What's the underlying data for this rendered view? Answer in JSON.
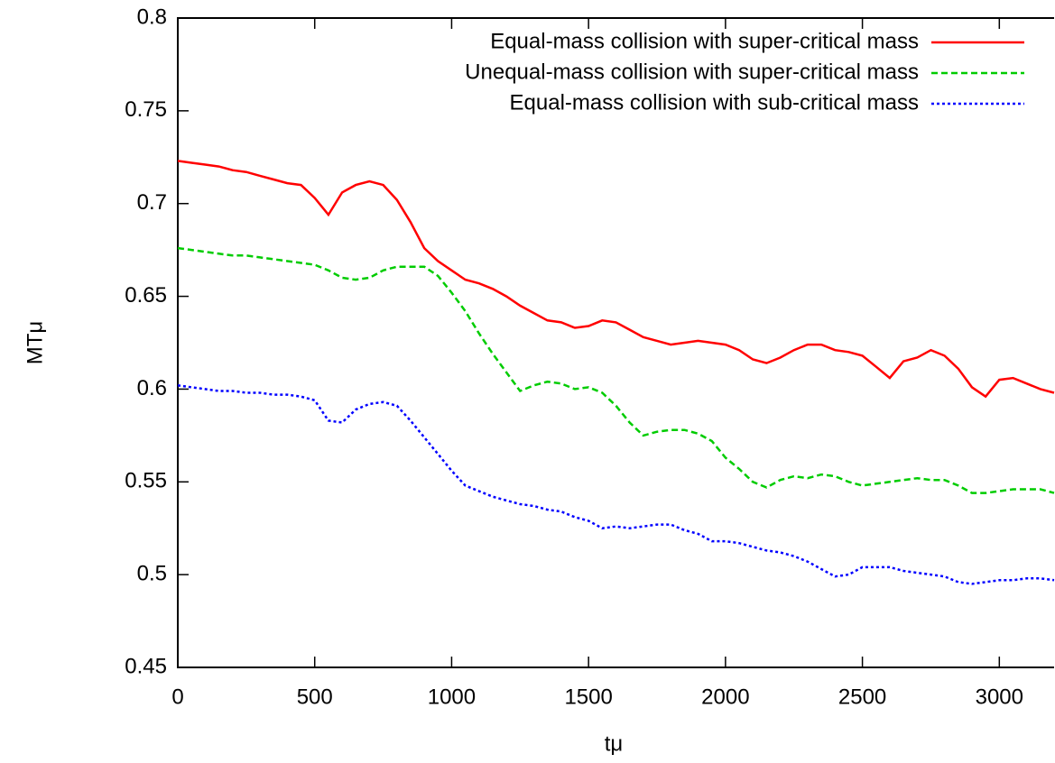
{
  "chart_data": {
    "type": "line",
    "xlabel": "tμ",
    "ylabel": "MTμ",
    "xlim": [
      0,
      3200
    ],
    "ylim": [
      0.45,
      0.8
    ],
    "xticks": [
      0,
      500,
      1000,
      1500,
      2000,
      2500,
      3000
    ],
    "yticks": [
      0.45,
      0.5,
      0.55,
      0.6,
      0.65,
      0.7,
      0.75,
      0.8
    ],
    "legend": "top-right",
    "x": [
      0,
      50,
      100,
      150,
      200,
      250,
      300,
      350,
      400,
      450,
      500,
      550,
      600,
      650,
      700,
      750,
      800,
      850,
      900,
      950,
      1000,
      1050,
      1100,
      1150,
      1200,
      1250,
      1300,
      1350,
      1400,
      1450,
      1500,
      1550,
      1600,
      1650,
      1700,
      1750,
      1800,
      1850,
      1900,
      1950,
      2000,
      2050,
      2100,
      2150,
      2200,
      2250,
      2300,
      2350,
      2400,
      2450,
      2500,
      2550,
      2600,
      2650,
      2700,
      2750,
      2800,
      2850,
      2900,
      2950,
      3000,
      3050,
      3100,
      3150,
      3200
    ],
    "series": [
      {
        "name": "Equal-mass collision with super-critical mass",
        "color": "#ff0000",
        "linestyle": "solid",
        "values": [
          0.723,
          0.722,
          0.721,
          0.72,
          0.718,
          0.717,
          0.715,
          0.713,
          0.711,
          0.71,
          0.703,
          0.694,
          0.706,
          0.71,
          0.712,
          0.71,
          0.702,
          0.69,
          0.676,
          0.669,
          0.664,
          0.659,
          0.657,
          0.654,
          0.65,
          0.645,
          0.641,
          0.637,
          0.636,
          0.633,
          0.634,
          0.637,
          0.636,
          0.632,
          0.628,
          0.626,
          0.624,
          0.625,
          0.626,
          0.625,
          0.624,
          0.621,
          0.616,
          0.614,
          0.617,
          0.621,
          0.624,
          0.624,
          0.621,
          0.62,
          0.618,
          0.612,
          0.606,
          0.615,
          0.617,
          0.621,
          0.618,
          0.611,
          0.601,
          0.596,
          0.605,
          0.606,
          0.603,
          0.6,
          0.598
        ]
      },
      {
        "name": "Unequal-mass collision with super-critical mass",
        "color": "#00cc00",
        "linestyle": "dashed",
        "values": [
          0.676,
          0.675,
          0.674,
          0.673,
          0.672,
          0.672,
          0.671,
          0.67,
          0.669,
          0.668,
          0.667,
          0.664,
          0.66,
          0.659,
          0.66,
          0.664,
          0.666,
          0.666,
          0.666,
          0.661,
          0.652,
          0.642,
          0.63,
          0.619,
          0.609,
          0.599,
          0.602,
          0.604,
          0.603,
          0.6,
          0.601,
          0.598,
          0.591,
          0.582,
          0.575,
          0.577,
          0.578,
          0.578,
          0.576,
          0.572,
          0.563,
          0.557,
          0.55,
          0.547,
          0.551,
          0.553,
          0.552,
          0.554,
          0.553,
          0.55,
          0.548,
          0.549,
          0.55,
          0.551,
          0.552,
          0.551,
          0.551,
          0.548,
          0.544,
          0.544,
          0.545,
          0.546,
          0.546,
          0.546,
          0.544
        ]
      },
      {
        "name": "Equal-mass collision with sub-critical mass",
        "color": "#0000ff",
        "linestyle": "dotted",
        "values": [
          0.602,
          0.601,
          0.6,
          0.599,
          0.599,
          0.598,
          0.598,
          0.597,
          0.597,
          0.596,
          0.594,
          0.583,
          0.582,
          0.589,
          0.592,
          0.593,
          0.591,
          0.583,
          0.574,
          0.565,
          0.556,
          0.548,
          0.545,
          0.542,
          0.54,
          0.538,
          0.537,
          0.535,
          0.534,
          0.531,
          0.529,
          0.525,
          0.526,
          0.525,
          0.526,
          0.527,
          0.527,
          0.524,
          0.522,
          0.518,
          0.518,
          0.517,
          0.515,
          0.513,
          0.512,
          0.51,
          0.507,
          0.503,
          0.499,
          0.5,
          0.504,
          0.504,
          0.504,
          0.502,
          0.501,
          0.5,
          0.499,
          0.496,
          0.495,
          0.496,
          0.497,
          0.497,
          0.498,
          0.498,
          0.497
        ]
      }
    ]
  }
}
